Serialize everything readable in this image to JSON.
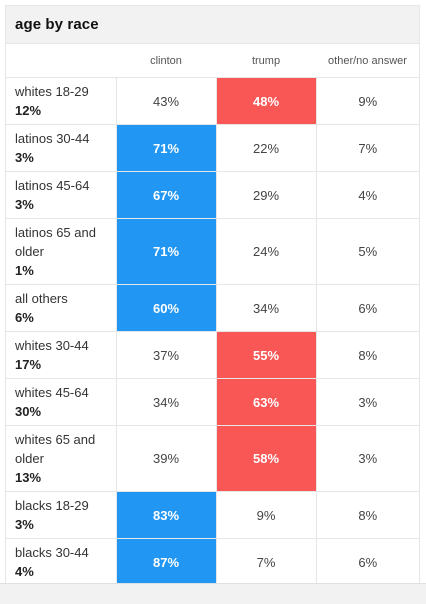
{
  "title": "age by race",
  "colors": {
    "clinton_win": "#2196f3",
    "trump_win": "#f95656"
  },
  "chart_data": {
    "type": "table",
    "title": "age by race",
    "columns": [
      "clinton",
      "trump",
      "other/no answer"
    ],
    "rows": [
      {
        "group": "whites 18-29",
        "share": "12%",
        "values": [
          "43%",
          "48%",
          "9%"
        ],
        "winner": 1
      },
      {
        "group": "latinos 30-44",
        "share": "3%",
        "values": [
          "71%",
          "22%",
          "7%"
        ],
        "winner": 0
      },
      {
        "group": "latinos 45-64",
        "share": "3%",
        "values": [
          "67%",
          "29%",
          "4%"
        ],
        "winner": 0
      },
      {
        "group": "latinos 65 and older",
        "share": "1%",
        "values": [
          "71%",
          "24%",
          "5%"
        ],
        "winner": 0
      },
      {
        "group": "all others",
        "share": "6%",
        "values": [
          "60%",
          "34%",
          "6%"
        ],
        "winner": 0
      },
      {
        "group": "whites 30-44",
        "share": "17%",
        "values": [
          "37%",
          "55%",
          "8%"
        ],
        "winner": 1
      },
      {
        "group": "whites 45-64",
        "share": "30%",
        "values": [
          "34%",
          "63%",
          "3%"
        ],
        "winner": 1
      },
      {
        "group": "whites 65 and older",
        "share": "13%",
        "values": [
          "39%",
          "58%",
          "3%"
        ],
        "winner": 1
      },
      {
        "group": "blacks 18-29",
        "share": "3%",
        "values": [
          "83%",
          "9%",
          "8%"
        ],
        "winner": 0
      },
      {
        "group": "blacks 30-44",
        "share": "4%",
        "values": [
          "87%",
          "7%",
          "6%"
        ],
        "winner": 0
      }
    ]
  }
}
